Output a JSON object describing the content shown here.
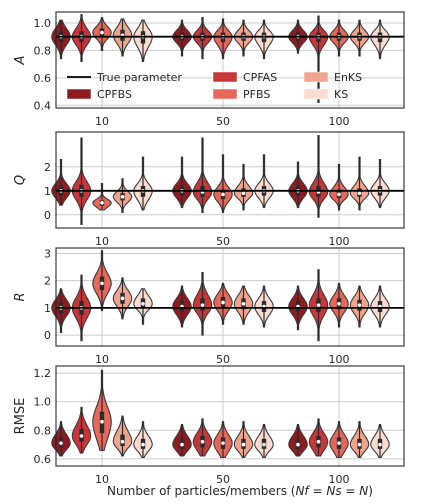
{
  "chart_data": {
    "type": "violin",
    "xlabel": "Number of particles/members (Nf = Ns = N)",
    "xlabel_parts": [
      "Number of particles/members (",
      "Nf",
      " = ",
      "Ns",
      " = ",
      "N",
      ")"
    ],
    "categories": [
      "10",
      "50",
      "100"
    ],
    "methods": [
      {
        "name": "CPFBS",
        "color": "#8e1b20"
      },
      {
        "name": "CPFAS",
        "color": "#c8363a"
      },
      {
        "name": "PFBS",
        "color": "#e5685a"
      },
      {
        "name": "EnKS",
        "color": "#f0a48d"
      },
      {
        "name": "KS",
        "color": "#fadbd0"
      }
    ],
    "legend": {
      "placement": "lower-left",
      "panel": "A",
      "true_label": "True parameter"
    },
    "panels": [
      {
        "name": "A",
        "ylabel": "A",
        "ylim": [
          0.38,
          1.08
        ],
        "yticks": [
          0.4,
          0.6,
          0.8,
          1.0
        ],
        "yticklabels": [
          "0.4",
          "0.6",
          "0.8",
          "1.0"
        ],
        "true_value": 0.9,
        "violins": [
          [
            {
              "min": 0.74,
              "max": 1.02,
              "q1": 0.86,
              "median": 0.9,
              "q3": 0.94
            },
            {
              "min": 0.72,
              "max": 1.06,
              "q1": 0.86,
              "median": 0.9,
              "q3": 0.94
            },
            {
              "min": 0.8,
              "max": 1.04,
              "q1": 0.9,
              "median": 0.93,
              "q3": 0.96
            },
            {
              "min": 0.76,
              "max": 1.03,
              "q1": 0.87,
              "median": 0.91,
              "q3": 0.95
            },
            {
              "min": 0.72,
              "max": 1.02,
              "q1": 0.85,
              "median": 0.9,
              "q3": 0.94
            }
          ],
          [
            {
              "min": 0.76,
              "max": 1.02,
              "q1": 0.87,
              "median": 0.9,
              "q3": 0.93
            },
            {
              "min": 0.74,
              "max": 1.04,
              "q1": 0.87,
              "median": 0.9,
              "q3": 0.93
            },
            {
              "min": 0.74,
              "max": 1.03,
              "q1": 0.86,
              "median": 0.9,
              "q3": 0.93
            },
            {
              "min": 0.76,
              "max": 1.02,
              "q1": 0.87,
              "median": 0.9,
              "q3": 0.93
            },
            {
              "min": 0.74,
              "max": 1.02,
              "q1": 0.86,
              "median": 0.9,
              "q3": 0.93
            }
          ],
          [
            {
              "min": 0.78,
              "max": 1.02,
              "q1": 0.87,
              "median": 0.9,
              "q3": 0.93
            },
            {
              "min": 0.42,
              "max": 1.05,
              "q1": 0.86,
              "median": 0.9,
              "q3": 0.93
            },
            {
              "min": 0.76,
              "max": 1.02,
              "q1": 0.87,
              "median": 0.9,
              "q3": 0.93
            },
            {
              "min": 0.76,
              "max": 1.02,
              "q1": 0.87,
              "median": 0.9,
              "q3": 0.93
            },
            {
              "min": 0.74,
              "max": 1.02,
              "q1": 0.86,
              "median": 0.9,
              "q3": 0.93
            }
          ]
        ]
      },
      {
        "name": "Q",
        "ylabel": "Q",
        "ylim": [
          -0.55,
          3.45
        ],
        "yticks": [
          0,
          1,
          2
        ],
        "yticklabels": [
          "0",
          "1",
          "2"
        ],
        "true_value": 1.0,
        "violins": [
          [
            {
              "min": 0.4,
              "max": 2.3,
              "q1": 0.8,
              "median": 1.0,
              "q3": 1.2
            },
            {
              "min": -0.4,
              "max": 3.2,
              "q1": 0.75,
              "median": 1.0,
              "q3": 1.25
            },
            {
              "min": 0.2,
              "max": 1.3,
              "q1": 0.38,
              "median": 0.5,
              "q3": 0.6
            },
            {
              "min": 0.1,
              "max": 1.5,
              "q1": 0.6,
              "median": 0.75,
              "q3": 0.9
            },
            {
              "min": 0.2,
              "max": 2.4,
              "q1": 0.75,
              "median": 1.0,
              "q3": 1.2
            }
          ],
          [
            {
              "min": 0.3,
              "max": 2.4,
              "q1": 0.8,
              "median": 1.0,
              "q3": 1.2
            },
            {
              "min": 0.1,
              "max": 3.2,
              "q1": 0.75,
              "median": 0.95,
              "q3": 1.2
            },
            {
              "min": 0.1,
              "max": 2.5,
              "q1": 0.65,
              "median": 0.85,
              "q3": 1.05
            },
            {
              "min": 0.2,
              "max": 2.1,
              "q1": 0.75,
              "median": 0.9,
              "q3": 1.1
            },
            {
              "min": 0.3,
              "max": 2.5,
              "q1": 0.8,
              "median": 1.0,
              "q3": 1.2
            }
          ],
          [
            {
              "min": 0.3,
              "max": 2.2,
              "q1": 0.8,
              "median": 1.0,
              "q3": 1.2
            },
            {
              "min": -0.1,
              "max": 3.3,
              "q1": 0.75,
              "median": 0.95,
              "q3": 1.2
            },
            {
              "min": 0.2,
              "max": 2.1,
              "q1": 0.7,
              "median": 0.85,
              "q3": 1.05
            },
            {
              "min": 0.2,
              "max": 2.4,
              "q1": 0.75,
              "median": 0.9,
              "q3": 1.1
            },
            {
              "min": 0.3,
              "max": 2.3,
              "q1": 0.8,
              "median": 1.0,
              "q3": 1.2
            }
          ]
        ]
      },
      {
        "name": "R",
        "ylabel": "R",
        "ylim": [
          -0.4,
          3.2
        ],
        "yticks": [
          0,
          1,
          2,
          3
        ],
        "yticklabels": [
          "0",
          "1",
          "2",
          "3"
        ],
        "true_value": 1.0,
        "violins": [
          [
            {
              "min": 0.1,
              "max": 1.7,
              "q1": 0.8,
              "median": 1.0,
              "q3": 1.2
            },
            {
              "min": -0.2,
              "max": 2.2,
              "q1": 0.75,
              "median": 1.0,
              "q3": 1.25
            },
            {
              "min": 0.9,
              "max": 3.1,
              "q1": 1.65,
              "median": 1.9,
              "q3": 2.15
            },
            {
              "min": 0.6,
              "max": 2.1,
              "q1": 1.15,
              "median": 1.35,
              "q3": 1.55
            },
            {
              "min": 0.4,
              "max": 1.7,
              "q1": 1.0,
              "median": 1.15,
              "q3": 1.35
            }
          ],
          [
            {
              "min": 0.3,
              "max": 1.8,
              "q1": 0.85,
              "median": 1.05,
              "q3": 1.25
            },
            {
              "min": 0.0,
              "max": 2.3,
              "q1": 0.9,
              "median": 1.1,
              "q3": 1.35
            },
            {
              "min": 0.4,
              "max": 1.9,
              "q1": 1.0,
              "median": 1.2,
              "q3": 1.4
            },
            {
              "min": 0.4,
              "max": 1.8,
              "q1": 0.95,
              "median": 1.15,
              "q3": 1.35
            },
            {
              "min": 0.3,
              "max": 1.8,
              "q1": 0.85,
              "median": 1.05,
              "q3": 1.25
            }
          ],
          [
            {
              "min": 0.2,
              "max": 1.8,
              "q1": 0.85,
              "median": 1.05,
              "q3": 1.25
            },
            {
              "min": -0.2,
              "max": 2.4,
              "q1": 0.85,
              "median": 1.1,
              "q3": 1.35
            },
            {
              "min": 0.3,
              "max": 1.9,
              "q1": 0.95,
              "median": 1.15,
              "q3": 1.35
            },
            {
              "min": 0.3,
              "max": 1.8,
              "q1": 0.9,
              "median": 1.1,
              "q3": 1.3
            },
            {
              "min": 0.3,
              "max": 1.8,
              "q1": 0.85,
              "median": 1.05,
              "q3": 1.25
            }
          ]
        ]
      },
      {
        "name": "RMSE",
        "ylabel": "RMSE",
        "ylim": [
          0.55,
          1.25
        ],
        "yticks": [
          0.6,
          0.8,
          1.0,
          1.2
        ],
        "yticklabels": [
          "0.6",
          "0.8",
          "1.0",
          "1.2"
        ],
        "true_value": null,
        "violins": [
          [
            {
              "min": 0.62,
              "max": 0.86,
              "q1": 0.68,
              "median": 0.71,
              "q3": 0.75
            },
            {
              "min": 0.64,
              "max": 0.96,
              "q1": 0.72,
              "median": 0.76,
              "q3": 0.81
            },
            {
              "min": 0.66,
              "max": 1.22,
              "q1": 0.78,
              "median": 0.86,
              "q3": 0.93
            },
            {
              "min": 0.62,
              "max": 0.9,
              "q1": 0.69,
              "median": 0.72,
              "q3": 0.77
            },
            {
              "min": 0.61,
              "max": 0.86,
              "q1": 0.67,
              "median": 0.7,
              "q3": 0.74
            }
          ],
          [
            {
              "min": 0.62,
              "max": 0.84,
              "q1": 0.67,
              "median": 0.7,
              "q3": 0.74
            },
            {
              "min": 0.62,
              "max": 0.88,
              "q1": 0.68,
              "median": 0.72,
              "q3": 0.76
            },
            {
              "min": 0.61,
              "max": 0.86,
              "q1": 0.67,
              "median": 0.71,
              "q3": 0.75
            },
            {
              "min": 0.61,
              "max": 0.86,
              "q1": 0.67,
              "median": 0.7,
              "q3": 0.74
            },
            {
              "min": 0.61,
              "max": 0.84,
              "q1": 0.67,
              "median": 0.7,
              "q3": 0.74
            }
          ],
          [
            {
              "min": 0.62,
              "max": 0.84,
              "q1": 0.67,
              "median": 0.7,
              "q3": 0.74
            },
            {
              "min": 0.62,
              "max": 0.88,
              "q1": 0.68,
              "median": 0.72,
              "q3": 0.76
            },
            {
              "min": 0.61,
              "max": 0.86,
              "q1": 0.67,
              "median": 0.71,
              "q3": 0.75
            },
            {
              "min": 0.61,
              "max": 0.86,
              "q1": 0.67,
              "median": 0.7,
              "q3": 0.74
            },
            {
              "min": 0.61,
              "max": 0.84,
              "q1": 0.67,
              "median": 0.7,
              "q3": 0.74
            }
          ]
        ]
      }
    ],
    "grid": true,
    "colors": {
      "true_line": "#000000",
      "grid": "#cccccc",
      "frame": "#262626",
      "marker": "#ffffff",
      "inner": "#2b2b2b"
    }
  }
}
